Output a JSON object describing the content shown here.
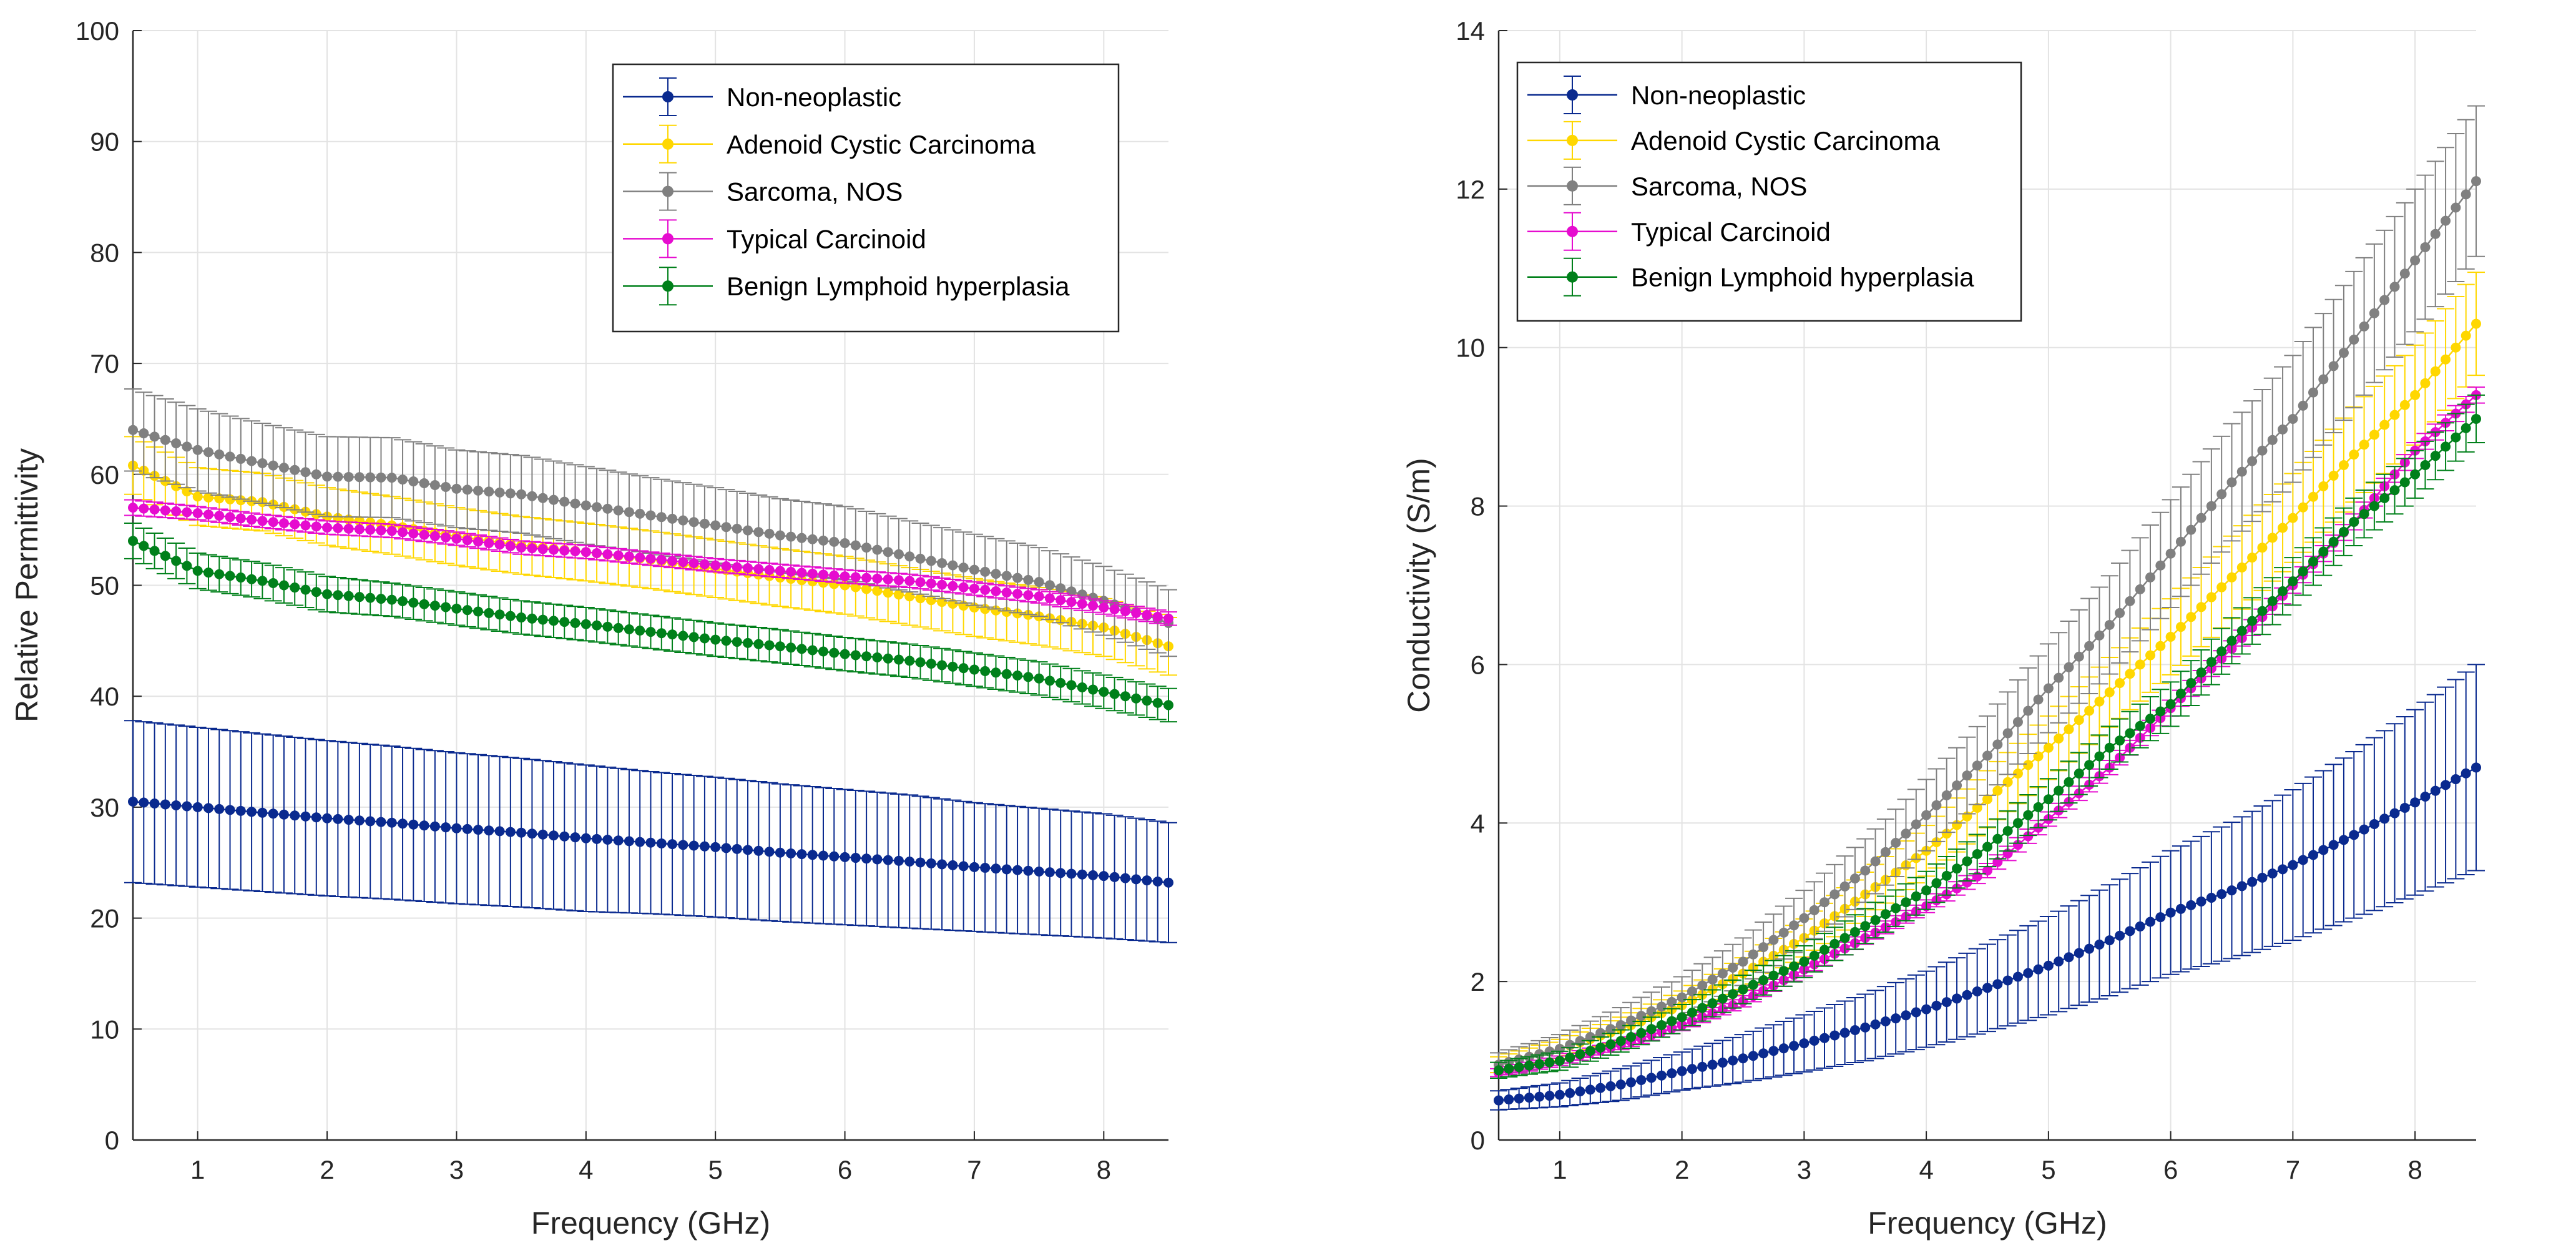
{
  "chart_data": [
    {
      "type": "line",
      "xlabel": "Frequency (GHz)",
      "ylabel": "Relative Permittivity",
      "xlim": [
        0.5,
        8.5
      ],
      "ylim": [
        0,
        100
      ],
      "xticks": [
        "1",
        "2",
        "3",
        "4",
        "5",
        "6",
        "7",
        "8"
      ],
      "yticks": [
        "0",
        "10",
        "20",
        "30",
        "40",
        "50",
        "60",
        "70",
        "80",
        "90",
        "100"
      ],
      "grid": true,
      "legend_position": "top-right",
      "x": [
        0.5,
        1,
        1.5,
        2,
        2.5,
        3,
        3.5,
        4,
        4.5,
        5,
        5.5,
        6,
        6.5,
        7,
        7.5,
        8,
        8.5
      ],
      "series": [
        {
          "name": "Non-neoplastic",
          "color": "#0a2a8f",
          "values": [
            30.5,
            30.0,
            29.5,
            29.0,
            28.6,
            28.1,
            27.7,
            27.2,
            26.8,
            26.4,
            25.9,
            25.5,
            25.1,
            24.6,
            24.2,
            23.8,
            23.2
          ],
          "error": [
            7.3,
            7.2,
            7.1,
            7.0,
            6.9,
            6.8,
            6.7,
            6.6,
            6.4,
            6.3,
            6.2,
            6.1,
            6.0,
            5.8,
            5.7,
            5.6,
            5.4
          ]
        },
        {
          "name": "Adenoid Cystic Carcinoma",
          "color": "#ffd700",
          "values": [
            60.8,
            58.0,
            57.5,
            56.2,
            55.4,
            54.4,
            53.6,
            53.0,
            52.3,
            51.5,
            50.7,
            50.0,
            49.0,
            48.0,
            47.2,
            46.2,
            44.5
          ],
          "error": [
            2.6,
            2.6,
            2.6,
            2.6,
            2.6,
            2.6,
            2.6,
            2.6,
            2.6,
            2.6,
            2.6,
            2.6,
            2.6,
            2.6,
            2.6,
            2.6,
            2.6
          ]
        },
        {
          "name": "Sarcoma, NOS",
          "color": "#808080",
          "values": [
            64.0,
            62.2,
            61.0,
            59.8,
            59.7,
            58.7,
            58.2,
            57.2,
            56.3,
            55.4,
            54.5,
            53.8,
            52.6,
            51.4,
            50.3,
            48.6,
            46.6
          ],
          "error": [
            3.7,
            3.7,
            3.6,
            3.6,
            3.6,
            3.5,
            3.5,
            3.5,
            3.4,
            3.4,
            3.3,
            3.3,
            3.2,
            3.2,
            3.1,
            3.1,
            3.0
          ]
        },
        {
          "name": "Typical Carcinoid",
          "color": "#e60ccf",
          "values": [
            57.0,
            56.5,
            55.8,
            55.2,
            54.9,
            54.2,
            53.4,
            53.0,
            52.4,
            51.8,
            51.3,
            50.8,
            50.4,
            49.7,
            49.0,
            48.0,
            47.0
          ],
          "error": [
            0.7,
            0.6,
            0.6,
            0.6,
            0.6,
            0.6,
            0.6,
            0.6,
            0.6,
            0.6,
            0.6,
            0.6,
            0.6,
            0.6,
            0.6,
            0.6,
            0.6
          ]
        },
        {
          "name": "Benign Lymphoid hyperplasia",
          "color": "#00801a",
          "values": [
            54.0,
            51.3,
            50.4,
            49.2,
            48.7,
            47.9,
            47.1,
            46.5,
            45.8,
            45.1,
            44.5,
            43.8,
            43.2,
            42.4,
            41.6,
            40.4,
            39.2
          ],
          "error": [
            1.6,
            1.6,
            1.6,
            1.6,
            1.5,
            1.5,
            1.5,
            1.5,
            1.5,
            1.5,
            1.5,
            1.5,
            1.5,
            1.5,
            1.5,
            1.5,
            1.5
          ]
        }
      ]
    },
    {
      "type": "line",
      "xlabel": "Frequency (GHz)",
      "ylabel": "Conductivity (S/m)",
      "xlim": [
        0.5,
        8.5
      ],
      "ylim": [
        0,
        14
      ],
      "xticks": [
        "1",
        "2",
        "3",
        "4",
        "5",
        "6",
        "7",
        "8"
      ],
      "yticks": [
        "0",
        "2",
        "4",
        "6",
        "8",
        "10",
        "12",
        "14"
      ],
      "grid": true,
      "legend_position": "top-left",
      "x": [
        0.5,
        1,
        1.5,
        2,
        2.5,
        3,
        3.5,
        4,
        4.5,
        5,
        5.5,
        6,
        6.5,
        7,
        7.5,
        8,
        8.5
      ],
      "series": [
        {
          "name": "Non-neoplastic",
          "color": "#0a2a8f",
          "values": [
            0.5,
            0.57,
            0.7,
            0.87,
            1.03,
            1.22,
            1.42,
            1.65,
            1.92,
            2.2,
            2.52,
            2.87,
            3.15,
            3.47,
            3.85,
            4.26,
            4.7
          ],
          "error": [
            0.12,
            0.15,
            0.2,
            0.24,
            0.3,
            0.36,
            0.42,
            0.48,
            0.55,
            0.62,
            0.7,
            0.78,
            0.86,
            0.95,
            1.05,
            1.17,
            1.3
          ]
        },
        {
          "name": "Adenoid Cystic Carcinoma",
          "color": "#ffd700",
          "values": [
            0.95,
            1.15,
            1.4,
            1.7,
            2.1,
            2.55,
            3.1,
            3.65,
            4.3,
            4.95,
            5.65,
            6.35,
            7.1,
            7.85,
            8.65,
            9.4,
            10.3
          ],
          "error": [
            0.1,
            0.12,
            0.15,
            0.18,
            0.2,
            0.24,
            0.28,
            0.32,
            0.36,
            0.4,
            0.44,
            0.48,
            0.52,
            0.56,
            0.6,
            0.63,
            0.65
          ]
        },
        {
          "name": "Sarcoma, NOS",
          "color": "#808080",
          "values": [
            0.95,
            1.15,
            1.45,
            1.8,
            2.25,
            2.8,
            3.4,
            4.1,
            4.85,
            5.7,
            6.5,
            7.4,
            8.3,
            9.1,
            10.1,
            11.1,
            12.1
          ],
          "error": [
            0.15,
            0.18,
            0.22,
            0.26,
            0.3,
            0.35,
            0.4,
            0.45,
            0.5,
            0.56,
            0.62,
            0.68,
            0.74,
            0.8,
            0.86,
            0.9,
            0.95
          ]
        },
        {
          "name": "Typical Carcinoid",
          "color": "#e60ccf",
          "values": [
            0.85,
            1.0,
            1.2,
            1.45,
            1.75,
            2.15,
            2.55,
            2.95,
            3.4,
            4.05,
            4.7,
            5.45,
            6.2,
            7.0,
            7.8,
            8.7,
            9.4
          ],
          "error": [
            0.05,
            0.06,
            0.06,
            0.07,
            0.07,
            0.08,
            0.08,
            0.08,
            0.09,
            0.09,
            0.09,
            0.1,
            0.1,
            0.1,
            0.1,
            0.1,
            0.1
          ]
        },
        {
          "name": "Benign Lymphoid hyperplasia",
          "color": "#00801a",
          "values": [
            0.88,
            1.0,
            1.25,
            1.55,
            1.9,
            2.25,
            2.7,
            3.15,
            3.7,
            4.3,
            4.95,
            5.5,
            6.3,
            7.05,
            7.8,
            8.4,
            9.1
          ],
          "error": [
            0.1,
            0.12,
            0.14,
            0.16,
            0.18,
            0.2,
            0.22,
            0.24,
            0.25,
            0.26,
            0.27,
            0.28,
            0.29,
            0.3,
            0.3,
            0.3,
            0.3
          ]
        }
      ]
    }
  ]
}
